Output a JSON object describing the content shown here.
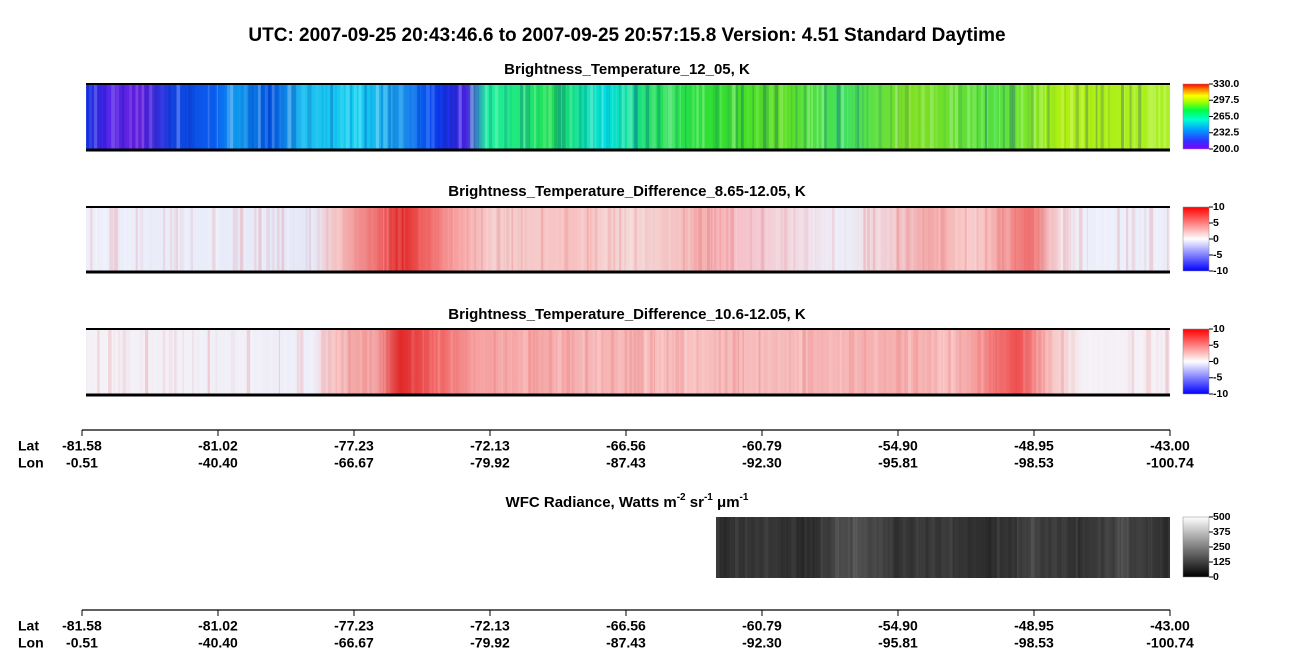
{
  "title": "UTC:  2007-09-25   20:43:46.6  to  2007-09-25   20:57:15.8    Version: 4.51  Standard Daytime",
  "chart_data": [
    {
      "type": "heatmap",
      "title": "Brightness_Temperature_12_05, K",
      "colormap": "rainbow",
      "zlim": [
        200,
        330
      ],
      "zticks": [
        {
          "value": 200,
          "label": "200.0"
        },
        232.5,
        {
          "value": 265,
          "label": "265.0"
        },
        297.5,
        {
          "value": 330,
          "label": "330.0"
        }
      ]
    },
    {
      "type": "heatmap",
      "title": "Brightness_Temperature_Difference_8.65-12.05, K",
      "colormap": "bwr",
      "zlim": [
        -10,
        10
      ],
      "zticks": [
        -10,
        -5,
        0,
        5,
        10
      ]
    },
    {
      "type": "heatmap",
      "title": "Brightness_Temperature_Difference_10.6-12.05, K",
      "colormap": "bwr",
      "zlim": [
        -10,
        10
      ],
      "zticks": [
        -10,
        -5,
        0,
        5,
        10
      ]
    },
    {
      "type": "heatmap",
      "title_parts": [
        {
          "text": "WFC Radiance, Watts m"
        },
        {
          "text": "-2",
          "sup": true
        },
        {
          "text": " sr"
        },
        {
          "text": "-1",
          "sup": true
        },
        {
          "text": " μm"
        },
        {
          "text": "-1",
          "sup": true
        }
      ],
      "colormap": "gray",
      "zlim": [
        0,
        500
      ],
      "zticks": [
        0,
        125,
        250,
        375,
        500
      ]
    }
  ],
  "x_axes": [
    {
      "rows": [
        {
          "name": "Lat",
          "labels": [
            "-81.58",
            "-81.02",
            "-77.23",
            "-72.13",
            "-66.56",
            "-60.79",
            "-54.90",
            "-48.95",
            "-43.00"
          ]
        },
        {
          "name": "Lon",
          "labels": [
            "-0.51",
            "-40.40",
            "-66.67",
            "-79.92",
            "-87.43",
            "-92.30",
            "-95.81",
            "-98.53",
            "-100.74"
          ]
        }
      ]
    },
    {
      "rows": [
        {
          "name": "Lat",
          "labels": [
            "-81.58",
            "-81.02",
            "-77.23",
            "-72.13",
            "-66.56",
            "-60.79",
            "-54.90",
            "-48.95",
            "-43.00"
          ]
        },
        {
          "name": "Lon",
          "labels": [
            "-0.51",
            "-40.40",
            "-66.67",
            "-79.92",
            "-87.43",
            "-92.30",
            "-95.81",
            "-98.53",
            "-100.74"
          ]
        }
      ]
    }
  ]
}
